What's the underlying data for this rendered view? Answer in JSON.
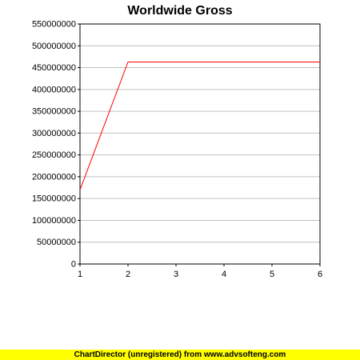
{
  "chart_data": {
    "type": "line",
    "title": "Worldwide Gross",
    "xlabel": "",
    "ylabel": "",
    "x": [
      1,
      2,
      3,
      4,
      5,
      6
    ],
    "series": [
      {
        "values": [
          170000000,
          463000000,
          463000000,
          463000000,
          463000000,
          463000000
        ]
      }
    ],
    "xlim": [
      1,
      6
    ],
    "ylim": [
      0,
      550000000
    ],
    "x_ticks": [
      "1",
      "2",
      "3",
      "4",
      "5",
      "6"
    ],
    "y_ticks": [
      "0",
      "50000000",
      "100000000",
      "150000000",
      "200000000",
      "250000000",
      "300000000",
      "350000000",
      "400000000",
      "450000000",
      "500000000",
      "550000000"
    ],
    "grid": "horizontal",
    "colors": {
      "line": "#ff0000",
      "grid": "#c0c0c0",
      "axis": "#000000"
    }
  },
  "footer": {
    "text": "ChartDirector (unregistered) from www.advsofteng.com"
  }
}
